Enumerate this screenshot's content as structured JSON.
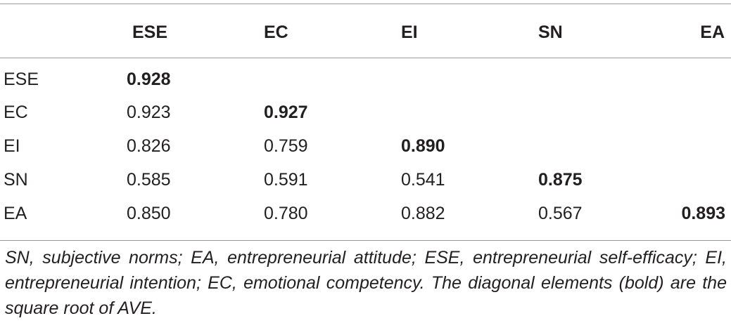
{
  "table": {
    "columns": [
      "",
      "ESE",
      "EC",
      "EI",
      "SN",
      "EA"
    ],
    "rows": [
      {
        "label": "ESE",
        "cells": [
          "0.928",
          "",
          "",
          "",
          ""
        ]
      },
      {
        "label": "EC",
        "cells": [
          "0.923",
          "0.927",
          "",
          "",
          ""
        ]
      },
      {
        "label": "EI",
        "cells": [
          "0.826",
          "0.759",
          "0.890",
          "",
          ""
        ]
      },
      {
        "label": "SN",
        "cells": [
          "0.585",
          "0.591",
          "0.541",
          "0.875",
          ""
        ]
      },
      {
        "label": "EA",
        "cells": [
          "0.850",
          "0.780",
          "0.882",
          "0.567",
          "0.893"
        ]
      }
    ]
  },
  "footnote": "SN, subjective norms; EA, entrepreneurial attitude; ESE, entrepreneurial self-efficacy; EI, entrepreneurial intention; EC, emotional competency. The diagonal elements (bold) are the square root of AVE."
}
